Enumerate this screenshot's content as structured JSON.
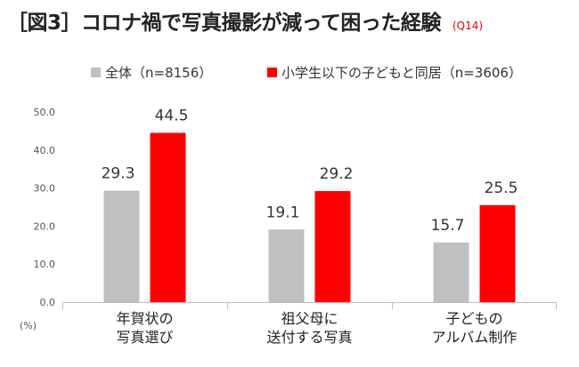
{
  "header": {
    "title": "［図3］コロナ禍で写真撮影が減って困った経験",
    "question_ref": "(Q14)"
  },
  "chart_data": {
    "type": "bar",
    "categories": [
      [
        "年賀状の",
        "写真選び"
      ],
      [
        "祖父母に",
        "送付する写真"
      ],
      [
        "子どもの",
        "アルバム制作"
      ]
    ],
    "series": [
      {
        "name": "全体（n=8156）",
        "values": [
          29.3,
          19.1,
          15.7
        ],
        "color": "#bfbfbf"
      },
      {
        "name": "小学生以下の子どもと同居（n=3606）",
        "values": [
          44.5,
          29.2,
          25.5
        ],
        "color": "#ff0000"
      }
    ],
    "yticks": [
      "0.0",
      "10.0",
      "20.0",
      "30.0",
      "40.0",
      "50.0"
    ],
    "ylim": [
      0,
      50
    ],
    "unit_label": "(%)",
    "grid": false,
    "legend_position": "top"
  }
}
